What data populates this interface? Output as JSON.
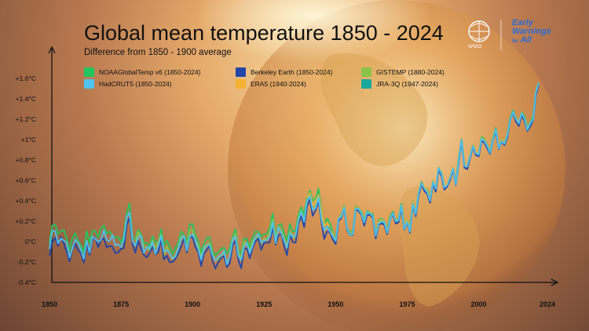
{
  "header": {
    "title": "Global mean temperature 1850 - 2024",
    "subtitle": "Difference from 1850 - 1900 average"
  },
  "logos": {
    "wmo": "WMO",
    "early_warnings_line1": "Early",
    "early_warnings_line2": "Warnings",
    "early_warnings_line3": "All",
    "early_warnings_for": "for"
  },
  "colors": {
    "NOAAGlobalTemp": "#22c55e",
    "Berkeley": "#2346a8",
    "ERA5": "#f4b134",
    "HadCRUT5": "#4fc3f0",
    "GISTEMP": "#8bc34a",
    "JRA3Q": "#1aa99b"
  },
  "chart_data": {
    "type": "line",
    "title": "Global mean temperature 1850 - 2024",
    "subtitle": "Difference from 1850 - 1900 average",
    "xlim": [
      1850,
      2024
    ],
    "ylim": [
      -0.4,
      1.6
    ],
    "x_ticks": [
      "1850",
      "1875",
      "1900",
      "1925",
      "1950",
      "1975",
      "2000",
      "2024"
    ],
    "x_tick_values": [
      1850,
      1875,
      1900,
      1925,
      1950,
      1975,
      2000,
      2024
    ],
    "y_ticks": [
      "+1.6°C",
      "+1.4°C",
      "+1.2°C",
      "+1°C",
      "+0.8°C",
      "+0.6°C",
      "+0.4°C",
      "+0.2°C",
      "0°C",
      "-0.2°C",
      "-0.4°C"
    ],
    "y_tick_values": [
      1.6,
      1.4,
      1.2,
      1.0,
      0.8,
      0.6,
      0.4,
      0.2,
      0.0,
      -0.2,
      -0.4
    ],
    "legend_placement": "top-left",
    "base_series": {
      "x_start": 1850,
      "values": [
        -0.05,
        0.08,
        0.1,
        0.02,
        0.06,
        0.03,
        -0.05,
        -0.15,
        -0.03,
        0.02,
        -0.02,
        -0.1,
        -0.18,
        0.05,
        -0.1,
        0.06,
        0.05,
        0.0,
        0.03,
        0.08,
        -0.01,
        0.01,
        0.03,
        -0.03,
        -0.05,
        -0.05,
        -0.02,
        0.25,
        0.28,
        0.0,
        -0.02,
        0.05,
        0.02,
        -0.07,
        -0.08,
        -0.08,
        -0.02,
        -0.1,
        -0.05,
        0.08,
        -0.12,
        -0.08,
        -0.12,
        -0.15,
        -0.12,
        -0.1,
        0.02,
        0.04,
        -0.07,
        0.07,
        0.09,
        0.0,
        -0.05,
        -0.17,
        -0.06,
        -0.04,
        -0.01,
        -0.15,
        -0.2,
        -0.17,
        -0.13,
        -0.11,
        -0.2,
        -0.15,
        0.0,
        0.05,
        -0.13,
        -0.2,
        -0.03,
        -0.03,
        -0.12,
        -0.02,
        0.04,
        0.06,
        -0.02,
        0.02,
        0.03,
        0.06,
        0.19,
        0.0,
        0.12,
        0.11,
        0.02,
        -0.06,
        0.1,
        0.03,
        0.04,
        0.22,
        0.28,
        0.2,
        0.38,
        0.45,
        0.32,
        0.35,
        0.45,
        0.25,
        0.1,
        0.15,
        0.12,
        0.05,
        0.0,
        0.22,
        0.25,
        0.33,
        0.12,
        0.07,
        0.08,
        0.32,
        0.32,
        0.27,
        0.18,
        0.28,
        0.27,
        0.25,
        0.05,
        0.18,
        0.2,
        0.19,
        0.09,
        0.22,
        0.28,
        0.19,
        0.2,
        0.35,
        0.13,
        0.2,
        0.1,
        0.38,
        0.27,
        0.47,
        0.58,
        0.52,
        0.49,
        0.4,
        0.58,
        0.51,
        0.72,
        0.66,
        0.53,
        0.55,
        0.62,
        0.72,
        0.57,
        0.79,
        1.0,
        0.74,
        0.73,
        0.83,
        0.94,
        0.87,
        0.85,
        1.0,
        0.99,
        0.93,
        0.87,
        1.0,
        1.1,
        0.92,
        0.99,
        0.96,
        1.03,
        1.2,
        1.28,
        1.2,
        1.15,
        1.25,
        1.2,
        1.1,
        1.15,
        1.2,
        1.46,
        1.55
      ],
      "note": ""
    },
    "series": [
      {
        "name": "NOAAGlobalTemp v6 (1850-2024)",
        "start": 1850,
        "end": 2024,
        "offset": 0.06,
        "seed": 1
      },
      {
        "name": "Berkeley Earth (1850-2024)",
        "start": 1850,
        "end": 2024,
        "offset": -0.05,
        "seed": 2
      },
      {
        "name": "ERA5 (1940-2024)",
        "start": 1940,
        "end": 2024,
        "offset": 0.03,
        "seed": 3
      },
      {
        "name": "HadCRUT5 (1850-2024)",
        "start": 1850,
        "end": 2024,
        "offset": 0.0,
        "seed": 4
      },
      {
        "name": "GISTEMP (1880-2024)",
        "start": 1880,
        "end": 2024,
        "offset": 0.01,
        "seed": 5
      },
      {
        "name": "JRA-3Q (1947-2024)",
        "start": 1947,
        "end": 2024,
        "offset": -0.01,
        "seed": 6
      }
    ]
  },
  "legend": [
    {
      "label": "NOAAGlobalTemp v6 (1850-2024)",
      "color": "#22c55e"
    },
    {
      "label": "Berkeley Earth (1850-2024)",
      "color": "#2346a8"
    },
    {
      "label": "ERA5 (1940-2024)",
      "color": "#f4b134"
    },
    {
      "label": "HadCRUT5 (1850-2024)",
      "color": "#4fc3f0"
    },
    {
      "label": "GISTEMP (1880-2024)",
      "color": "#8bc34a"
    },
    {
      "label": "JRA-3Q (1947-2024)",
      "color": "#1aa99b"
    }
  ]
}
